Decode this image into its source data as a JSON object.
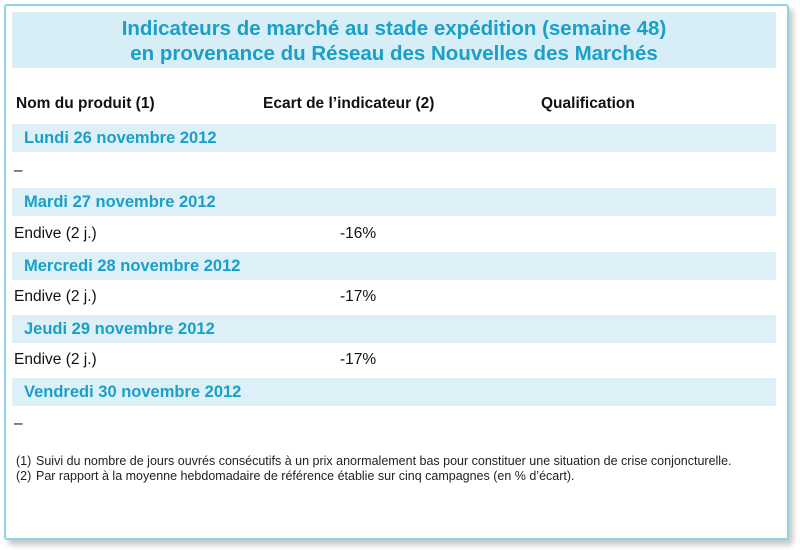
{
  "title": {
    "line1": "Indicateurs de marché au stade expédition (semaine 48)",
    "line2": "en provenance du Réseau des Nouvelles des Marchés"
  },
  "columns": {
    "product": "Nom du produit (1)",
    "gap": "Ecart de l’indicateur (2)",
    "qualification": "Qualification"
  },
  "days": [
    {
      "label": "Lundi 26 novembre 2012",
      "rows": [
        {
          "product": "–",
          "gap": "",
          "qualification": ""
        }
      ]
    },
    {
      "label": "Mardi 27 novembre 2012",
      "rows": [
        {
          "product": "Endive (2 j.)",
          "gap": "-16%",
          "qualification": ""
        }
      ]
    },
    {
      "label": "Mercredi 28 novembre 2012",
      "rows": [
        {
          "product": "Endive (2 j.)",
          "gap": "-17%",
          "qualification": ""
        }
      ]
    },
    {
      "label": "Jeudi 29 novembre 2012",
      "rows": [
        {
          "product": "Endive (2 j.)",
          "gap": "-17%",
          "qualification": ""
        }
      ]
    },
    {
      "label": "Vendredi 30 novembre 2012",
      "rows": [
        {
          "product": "–",
          "gap": "",
          "qualification": ""
        }
      ]
    }
  ],
  "footnotes": [
    {
      "num": "(1)",
      "text": "Suivi du nombre de jours ouvrés consécutifs à un prix anormalement bas pour constituer une situation de crise conjoncturelle."
    },
    {
      "num": "(2)",
      "text": "Par rapport à la moyenne hebdomadaire de référence établie sur cinq campagnes (en % d’écart)."
    }
  ],
  "colors": {
    "accent": "#1a9fc8",
    "band": "#ddf0f7",
    "border": "#8fd3e6"
  }
}
